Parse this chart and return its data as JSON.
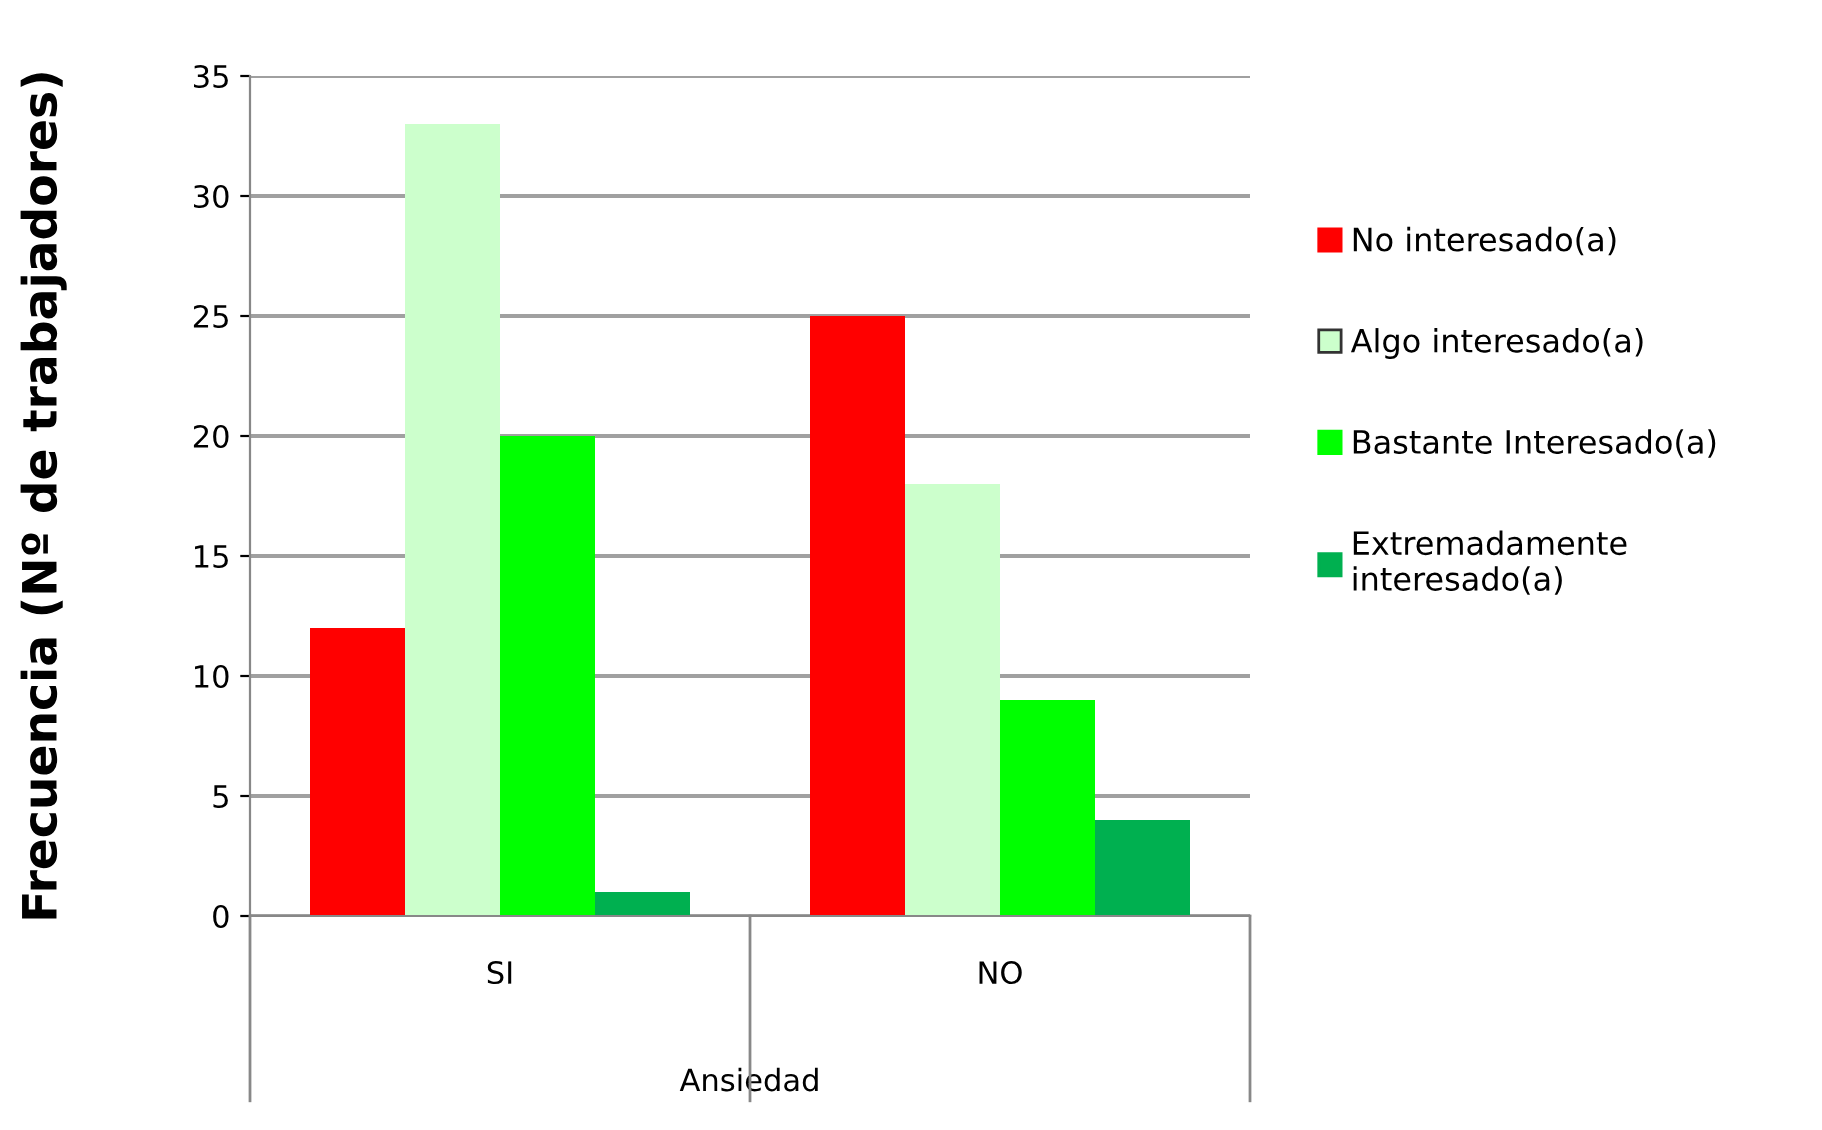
{
  "chart_data": {
    "type": "bar",
    "ylabel": "Frecuencia (Nº de trabajadores)",
    "xlabel": "Ansiedad",
    "categories": [
      "SI",
      "NO"
    ],
    "series": [
      {
        "name": "No interesado(a)",
        "color": "#ff0000",
        "values": [
          12,
          25
        ]
      },
      {
        "name": "Algo interesado(a)",
        "color": "#ccffcc",
        "values": [
          33,
          18
        ]
      },
      {
        "name": "Bastante Interesado(a)",
        "color": "#00ff00",
        "values": [
          20,
          9
        ]
      },
      {
        "name": "Extremadamente\ninteresado(a)",
        "color": "#00b050",
        "values": [
          1,
          4
        ]
      }
    ],
    "ylim": [
      0,
      35
    ],
    "yticks": [
      0,
      5,
      10,
      15,
      20,
      25,
      30,
      35
    ],
    "grid": "y",
    "legend": "right"
  }
}
